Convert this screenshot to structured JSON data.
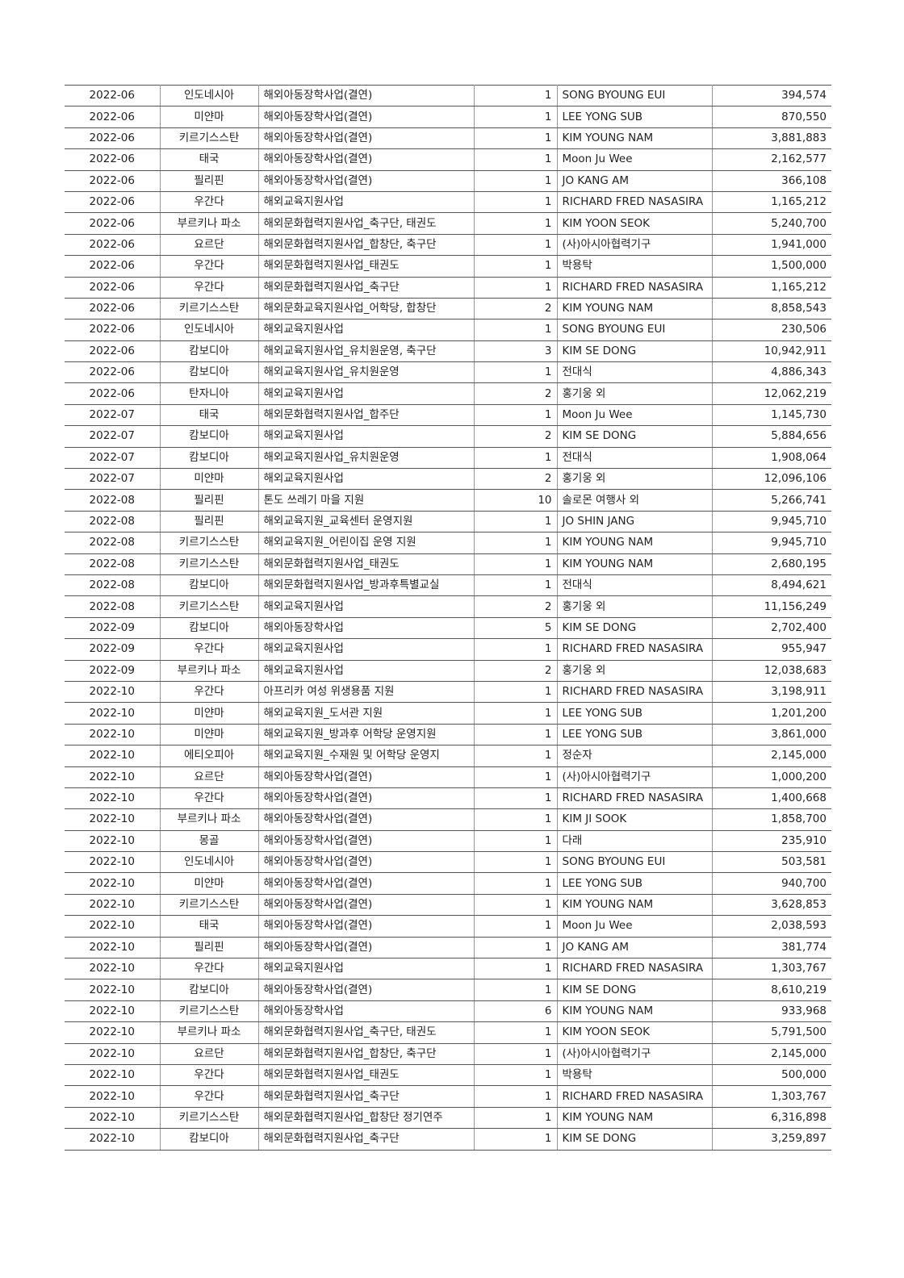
{
  "table": {
    "rows": [
      [
        "2022-06",
        "인도네시아",
        "해외아동장학사업(결연)",
        "1",
        "SONG BYOUNG EUI",
        "394,574"
      ],
      [
        "2022-06",
        "미얀마",
        "해외아동장학사업(결연)",
        "1",
        "LEE YONG SUB",
        "870,550"
      ],
      [
        "2022-06",
        "키르기스스탄",
        "해외아동장학사업(결연)",
        "1",
        "KIM YOUNG NAM",
        "3,881,883"
      ],
      [
        "2022-06",
        "태국",
        "해외아동장학사업(결연)",
        "1",
        "Moon Ju Wee",
        "2,162,577"
      ],
      [
        "2022-06",
        "필리핀",
        "해외아동장학사업(결연)",
        "1",
        "JO KANG AM",
        "366,108"
      ],
      [
        "2022-06",
        "우간다",
        "해외교육지원사업",
        "1",
        "RICHARD FRED NASASIRA",
        "1,165,212"
      ],
      [
        "2022-06",
        "부르키나 파소",
        "해외문화협력지원사업_축구단, 태권도",
        "1",
        "KIM YOON SEOK",
        "5,240,700"
      ],
      [
        "2022-06",
        "요르단",
        "해외문화협력지원사업_합창단, 축구단",
        "1",
        "(사)아시아협력기구",
        "1,941,000"
      ],
      [
        "2022-06",
        "우간다",
        "해외문화협력지원사업_태권도",
        "1",
        "박용탁",
        "1,500,000"
      ],
      [
        "2022-06",
        "우간다",
        "해외문화협력지원사업_축구단",
        "1",
        "RICHARD FRED NASASIRA",
        "1,165,212"
      ],
      [
        "2022-06",
        "키르기스스탄",
        "해외문화교육지원사업_어학당, 합창단",
        "2",
        "KIM YOUNG NAM",
        "8,858,543"
      ],
      [
        "2022-06",
        "인도네시아",
        "해외교육지원사업",
        "1",
        "SONG BYOUNG EUI",
        "230,506"
      ],
      [
        "2022-06",
        "캄보디아",
        "해외교육지원사업_유치원운영, 축구단",
        "3",
        "KIM SE DONG",
        "10,942,911"
      ],
      [
        "2022-06",
        "캄보디아",
        "해외교육지원사업_유치원운영",
        "1",
        "전대식",
        "4,886,343"
      ],
      [
        "2022-06",
        "탄자니아",
        "해외교육지원사업",
        "2",
        "홍기웅 외",
        "12,062,219"
      ],
      [
        "2022-07",
        "태국",
        "해외문화협력지원사업_합주단",
        "1",
        "Moon Ju Wee",
        "1,145,730"
      ],
      [
        "2022-07",
        "캄보디아",
        "해외교육지원사업",
        "2",
        "KIM SE DONG",
        "5,884,656"
      ],
      [
        "2022-07",
        "캄보디아",
        "해외교육지원사업_유치원운영",
        "1",
        "전대식",
        "1,908,064"
      ],
      [
        "2022-07",
        "미얀마",
        "해외교육지원사업",
        "2",
        "홍기웅 외",
        "12,096,106"
      ],
      [
        "2022-08",
        "필리핀",
        "톤도 쓰레기 마을 지원",
        "10",
        "솔로몬 여행사 외",
        "5,266,741"
      ],
      [
        "2022-08",
        "필리핀",
        "해외교육지원_교육센터 운영지원",
        "1",
        "JO SHIN JANG",
        "9,945,710"
      ],
      [
        "2022-08",
        "키르기스스탄",
        "해외교육지원_어린이집 운영 지원",
        "1",
        "KIM YOUNG NAM",
        "9,945,710"
      ],
      [
        "2022-08",
        "키르기스스탄",
        "해외문화협력지원사업_태권도",
        "1",
        "KIM YOUNG NAM",
        "2,680,195"
      ],
      [
        "2022-08",
        "캄보디아",
        "해외문화협력지원사업_방과후특별교실",
        "1",
        "전대식",
        "8,494,621"
      ],
      [
        "2022-08",
        "키르기스스탄",
        "해외교육지원사업",
        "2",
        "홍기웅 외",
        "11,156,249"
      ],
      [
        "2022-09",
        "캄보디아",
        "해외아동장학사업",
        "5",
        "KIM SE DONG",
        "2,702,400"
      ],
      [
        "2022-09",
        "우간다",
        "해외교육지원사업",
        "1",
        "RICHARD FRED NASASIRA",
        "955,947"
      ],
      [
        "2022-09",
        "부르키나 파소",
        "해외교육지원사업",
        "2",
        "홍기웅 외",
        "12,038,683"
      ],
      [
        "2022-10",
        "우간다",
        "아프리카 여성 위생용품 지원",
        "1",
        "RICHARD FRED NASASIRA",
        "3,198,911"
      ],
      [
        "2022-10",
        "미얀마",
        "해외교육지원_도서관 지원",
        "1",
        "LEE YONG SUB",
        "1,201,200"
      ],
      [
        "2022-10",
        "미얀마",
        "해외교육지원_방과후 어학당 운영지원",
        "1",
        "LEE YONG SUB",
        "3,861,000"
      ],
      [
        "2022-10",
        "에티오피아",
        "해외교육지원_수재원 및 어학당 운영지",
        "1",
        "정순자",
        "2,145,000"
      ],
      [
        "2022-10",
        "요르단",
        "해외아동장학사업(결연)",
        "1",
        "(사)아시아협력기구",
        "1,000,200"
      ],
      [
        "2022-10",
        "우간다",
        "해외아동장학사업(결연)",
        "1",
        "RICHARD FRED NASASIRA",
        "1,400,668"
      ],
      [
        "2022-10",
        "부르키나 파소",
        "해외아동장학사업(결연)",
        "1",
        "KIM JI SOOK",
        "1,858,700"
      ],
      [
        "2022-10",
        "몽골",
        "해외아동장학사업(결연)",
        "1",
        "다래",
        "235,910"
      ],
      [
        "2022-10",
        "인도네시아",
        "해외아동장학사업(결연)",
        "1",
        "SONG BYOUNG EUI",
        "503,581"
      ],
      [
        "2022-10",
        "미얀마",
        "해외아동장학사업(결연)",
        "1",
        "LEE YONG SUB",
        "940,700"
      ],
      [
        "2022-10",
        "키르기스스탄",
        "해외아동장학사업(결연)",
        "1",
        "KIM YOUNG NAM",
        "3,628,853"
      ],
      [
        "2022-10",
        "태국",
        "해외아동장학사업(결연)",
        "1",
        "Moon Ju Wee",
        "2,038,593"
      ],
      [
        "2022-10",
        "필리핀",
        "해외아동장학사업(결연)",
        "1",
        "JO KANG AM",
        "381,774"
      ],
      [
        "2022-10",
        "우간다",
        "해외교육지원사업",
        "1",
        "RICHARD FRED NASASIRA",
        "1,303,767"
      ],
      [
        "2022-10",
        "캄보디아",
        "해외아동장학사업(결연)",
        "1",
        "KIM SE DONG",
        "8,610,219"
      ],
      [
        "2022-10",
        "키르기스스탄",
        "해외아동장학사업",
        "6",
        "KIM YOUNG NAM",
        "933,968"
      ],
      [
        "2022-10",
        "부르키나 파소",
        "해외문화협력지원사업_축구단, 태권도",
        "1",
        "KIM YOON SEOK",
        "5,791,500"
      ],
      [
        "2022-10",
        "요르단",
        "해외문화협력지원사업_합창단, 축구단",
        "1",
        "(사)아시아협력기구",
        "2,145,000"
      ],
      [
        "2022-10",
        "우간다",
        "해외문화협력지원사업_태권도",
        "1",
        "박용탁",
        "500,000"
      ],
      [
        "2022-10",
        "우간다",
        "해외문화협력지원사업_축구단",
        "1",
        "RICHARD FRED NASASIRA",
        "1,303,767"
      ],
      [
        "2022-10",
        "키르기스스탄",
        "해외문화협력지원사업_합창단 정기연주",
        "1",
        "KIM YOUNG NAM",
        "6,316,898"
      ],
      [
        "2022-10",
        "캄보디아",
        "해외문화협력지원사업_축구단",
        "1",
        "KIM SE DONG",
        "3,259,897"
      ]
    ]
  }
}
